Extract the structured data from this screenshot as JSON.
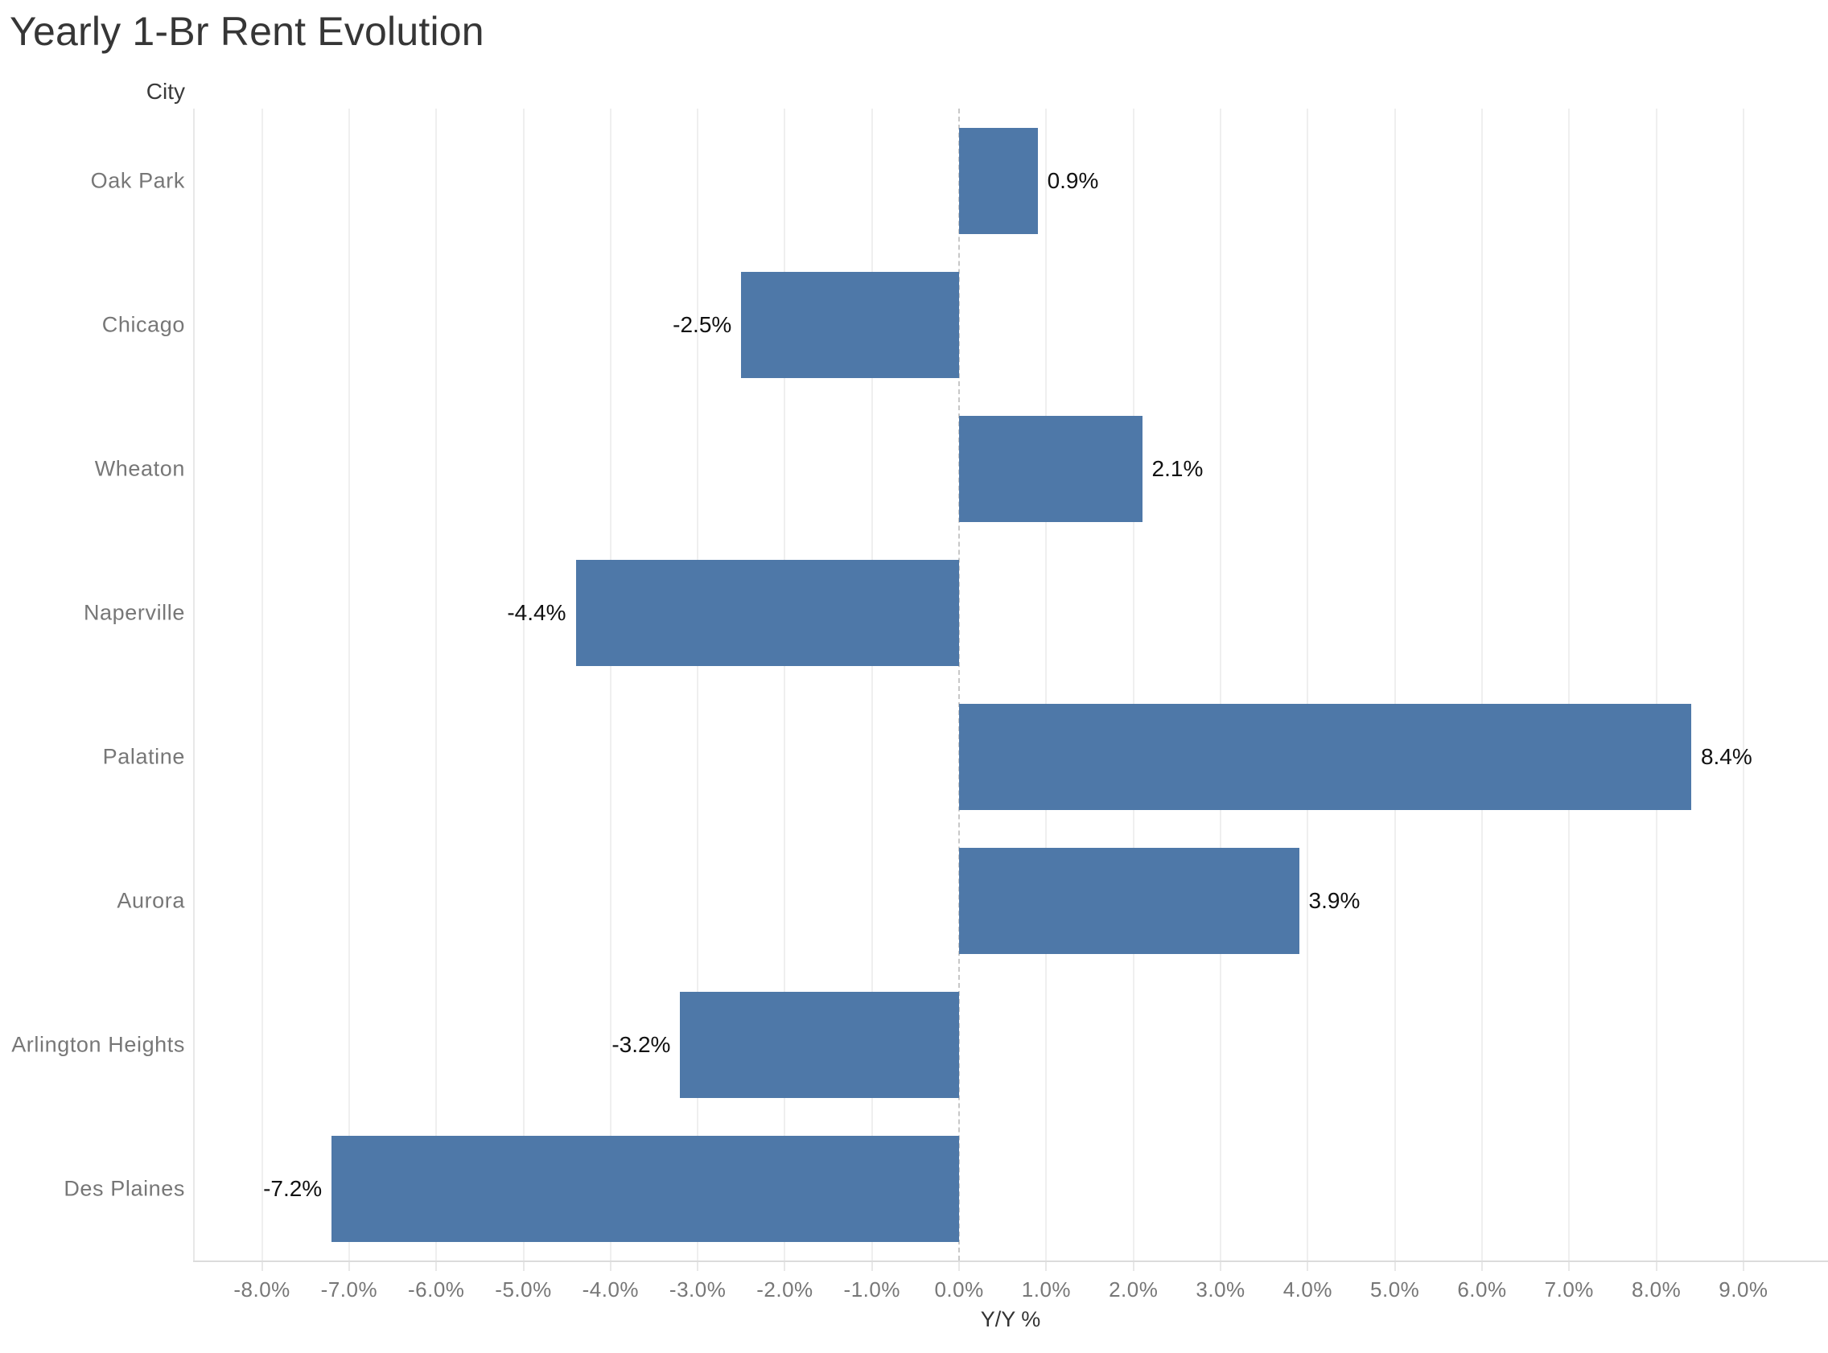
{
  "title": "Yearly 1-Br Rent Evolution",
  "colors": {
    "bar": "#4e78a8",
    "gridline": "#efefef",
    "zero_line": "#c8c8c8",
    "axis_line": "#dcdcdc",
    "tick_label": "#777777",
    "city_label": "#777777",
    "value_label": "#111111",
    "title_text": "#363636"
  },
  "chart_data": {
    "type": "bar",
    "orientation": "horizontal",
    "title": "Yearly 1-Br Rent Evolution",
    "row_header": "City",
    "categories": [
      "Oak Park",
      "Chicago",
      "Wheaton",
      "Naperville",
      "Palatine",
      "Aurora",
      "Arlington Heights",
      "Des Plaines"
    ],
    "values": [
      0.9,
      -2.5,
      2.1,
      -4.4,
      8.4,
      3.9,
      -3.2,
      -7.2
    ],
    "value_labels": [
      "0.9%",
      "-2.5%",
      "2.1%",
      "-4.4%",
      "8.4%",
      "3.9%",
      "-3.2%",
      "-7.2%"
    ],
    "xlabel": "Y/Y %",
    "x_ticks": [
      -8,
      -7,
      -6,
      -5,
      -4,
      -3,
      -2,
      -1,
      0,
      1,
      2,
      3,
      4,
      5,
      6,
      7,
      8,
      9
    ],
    "x_tick_labels": [
      "-8.0%",
      "-7.0%",
      "-6.0%",
      "-5.0%",
      "-4.0%",
      "-3.0%",
      "-2.0%",
      "-1.0%",
      "0.0%",
      "1.0%",
      "2.0%",
      "3.0%",
      "4.0%",
      "5.0%",
      "6.0%",
      "7.0%",
      "8.0%",
      "9.0%"
    ],
    "xlim": [
      -8.79,
      9.97
    ],
    "grid": true,
    "zero_line_style": "dashed",
    "legend": "none"
  }
}
